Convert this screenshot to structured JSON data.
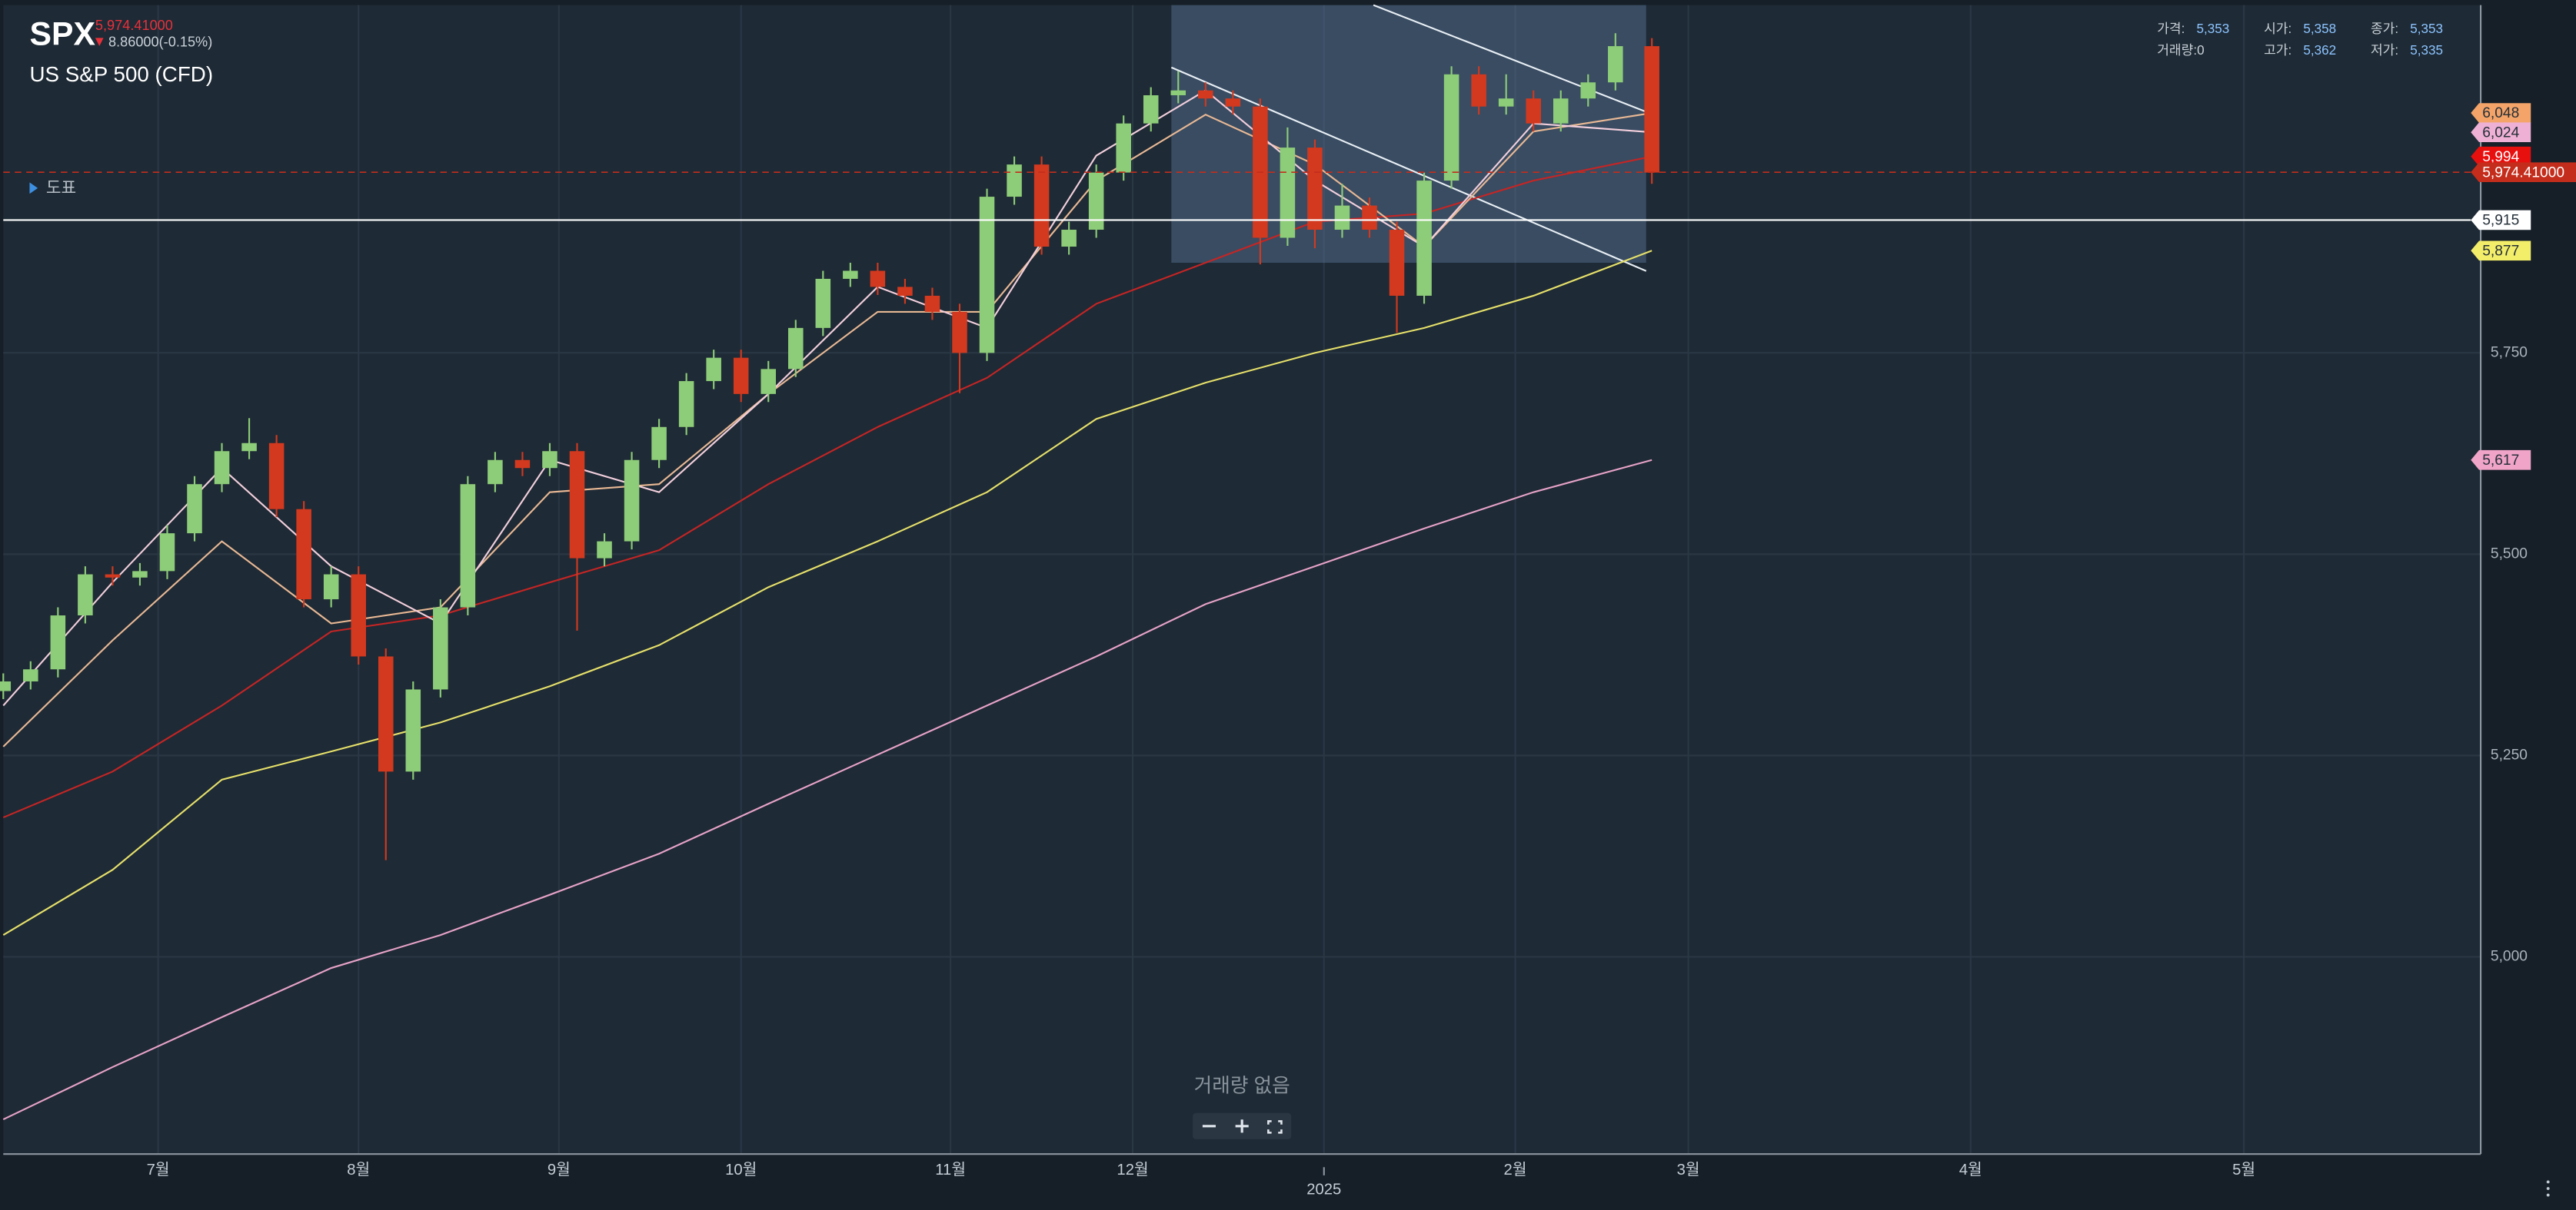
{
  "header": {
    "symbol": "SPX",
    "change": "8.86000(-0.15%)",
    "name": "US S&P 500 (CFD)",
    "toggle": "도표"
  },
  "info": {
    "rows": [
      [
        {
          "label": "가격:",
          "value": "5,353"
        },
        {
          "label": "시가:",
          "value": "5,358"
        },
        {
          "label": "종가:",
          "value": "5,353"
        }
      ],
      [
        {
          "label": "거래량:0"
        },
        {
          "label": "고가:",
          "value": "5,362"
        },
        {
          "label": "저가:",
          "value": "5,335"
        }
      ]
    ]
  },
  "chart_data": {
    "type": "candlestick",
    "x": [
      0,
      3,
      6,
      9,
      12,
      15,
      18,
      21,
      24,
      27,
      30,
      33,
      36,
      39,
      42,
      45,
      48,
      51,
      54,
      57,
      60,
      63,
      66,
      69,
      72,
      75,
      78,
      81,
      84,
      87,
      90,
      93,
      96,
      99,
      102,
      105,
      108,
      111,
      114,
      117,
      120,
      123,
      126,
      129,
      132,
      135,
      138,
      141,
      144,
      147,
      150,
      153,
      156,
      159,
      162,
      165,
      168,
      171,
      174,
      177,
      181
    ],
    "open": [
      5330,
      5342,
      5357,
      5424,
      5475,
      5471,
      5479,
      5526,
      5587,
      5628,
      5638,
      5556,
      5444,
      5475,
      5373,
      5230,
      5332,
      5434,
      5587,
      5617,
      5607,
      5628,
      5495,
      5516,
      5617,
      5658,
      5715,
      5744,
      5699,
      5730,
      5781,
      5842,
      5852,
      5832,
      5821,
      5801,
      5750,
      5944,
      5984,
      5882,
      5903,
      5974,
      6035,
      6070,
      6076,
      6066,
      6056,
      5893,
      6005,
      5903,
      5933,
      5903,
      5821,
      5964,
      6096,
      6056,
      6066,
      6035,
      6066,
      6086,
      6131
    ],
    "high": [
      5352,
      5367,
      5434,
      5485,
      5485,
      5489,
      5536,
      5597,
      5638,
      5669,
      5648,
      5566,
      5485,
      5485,
      5383,
      5342,
      5444,
      5597,
      5627,
      5627,
      5638,
      5638,
      5526,
      5627,
      5668,
      5725,
      5754,
      5754,
      5740,
      5791,
      5852,
      5862,
      5862,
      5842,
      5831,
      5811,
      5954,
      5994,
      5994,
      5913,
      5984,
      6045,
      6080,
      6100,
      6086,
      6076,
      6066,
      6030,
      6015,
      5960,
      5943,
      5913,
      5974,
      6106,
      6106,
      6096,
      6076,
      6076,
      6096,
      6147,
      6141
    ],
    "low": [
      5320,
      5332,
      5347,
      5414,
      5461,
      5461,
      5469,
      5516,
      5577,
      5618,
      5546,
      5434,
      5434,
      5363,
      5120,
      5220,
      5322,
      5424,
      5577,
      5597,
      5597,
      5405,
      5485,
      5506,
      5607,
      5648,
      5705,
      5689,
      5689,
      5720,
      5771,
      5832,
      5822,
      5811,
      5791,
      5700,
      5740,
      5934,
      5872,
      5872,
      5893,
      5964,
      6025,
      6060,
      6056,
      6046,
      5860,
      5883,
      5880,
      5893,
      5893,
      5775,
      5811,
      5954,
      6046,
      6046,
      6025,
      6025,
      6056,
      6076,
      5960
    ],
    "close": [
      5342,
      5357,
      5424,
      5475,
      5471,
      5479,
      5526,
      5587,
      5628,
      5638,
      5556,
      5444,
      5475,
      5373,
      5230,
      5332,
      5434,
      5587,
      5617,
      5607,
      5628,
      5495,
      5516,
      5617,
      5658,
      5715,
      5744,
      5699,
      5730,
      5781,
      5842,
      5852,
      5832,
      5821,
      5801,
      5750,
      5944,
      5984,
      5882,
      5903,
      5974,
      6035,
      6070,
      6076,
      6066,
      6056,
      5893,
      6005,
      5903,
      5933,
      5903,
      5821,
      5964,
      6096,
      6056,
      6066,
      6035,
      6066,
      6086,
      6131,
      5974
    ],
    "up_color": "#8dcc78",
    "down_color": "#d2391f",
    "lines": [
      {
        "color": "#e6e06a",
        "label_color": "#f2ee6a",
        "x": [
          0,
          12,
          24,
          36,
          48,
          60,
          72,
          84,
          96,
          108,
          120,
          132,
          144,
          156,
          168,
          181
        ],
        "values": [
          5027,
          5108,
          5220,
          5255,
          5291,
          5336,
          5387,
          5459,
          5516,
          5577,
          5668,
          5713,
          5750,
          5781,
          5821,
          5877
        ],
        "value_labels": [
          null,
          null,
          null,
          null,
          null,
          null,
          null,
          null,
          null,
          null,
          null,
          null,
          null,
          null,
          null,
          "5,877"
        ]
      },
      {
        "color": "#e6a2c8",
        "label_color": "#f0a4c8",
        "x": [
          0,
          12,
          24,
          36,
          48,
          60,
          72,
          84,
          96,
          108,
          120,
          132,
          144,
          156,
          168,
          181
        ],
        "values": [
          4798,
          4863,
          4925,
          4986,
          5027,
          5077,
          5128,
          5190,
          5251,
          5312,
          5373,
          5438,
          5485,
          5532,
          5577,
          5617
        ],
        "value_labels": [
          null,
          null,
          null,
          null,
          null,
          null,
          null,
          null,
          null,
          null,
          null,
          null,
          null,
          null,
          null,
          "5,617"
        ]
      },
      {
        "color": "#c42525",
        "label_color": "#e8100e",
        "x": [
          0,
          12,
          24,
          36,
          48,
          60,
          72,
          84,
          96,
          108,
          120,
          132,
          144,
          156,
          168,
          181
        ],
        "values": [
          5173,
          5230,
          5312,
          5404,
          5424,
          5465,
          5505,
          5587,
          5658,
          5719,
          5811,
          5862,
          5913,
          5923,
          5964,
          5994
        ],
        "value_labels": [
          null,
          null,
          null,
          null,
          null,
          null,
          null,
          null,
          null,
          null,
          null,
          null,
          null,
          null,
          null,
          "5,994"
        ]
      },
      {
        "color": "#e8b894",
        "label_color": "#f4a468",
        "x": [
          0,
          12,
          24,
          36,
          48,
          60,
          72,
          84,
          96,
          108,
          120,
          132,
          144,
          156,
          168,
          181
        ],
        "values": [
          5261,
          5393,
          5516,
          5414,
          5434,
          5577,
          5587,
          5699,
          5801,
          5801,
          5964,
          6046,
          5984,
          5882,
          6025,
          6048
        ],
        "value_labels": [
          null,
          null,
          null,
          null,
          null,
          null,
          null,
          null,
          null,
          null,
          null,
          null,
          null,
          null,
          null,
          "6,048"
        ]
      },
      {
        "color": "#f2cfdc",
        "label_color": "#eeb0d4",
        "x": [
          0,
          12,
          24,
          36,
          48,
          60,
          72,
          84,
          96,
          108,
          120,
          132,
          144,
          156,
          168,
          181
        ],
        "values": [
          5312,
          5465,
          5607,
          5485,
          5414,
          5617,
          5577,
          5699,
          5832,
          5781,
          5995,
          6076,
          5964,
          5882,
          6035,
          6024
        ],
        "value_labels": [
          null,
          null,
          null,
          null,
          null,
          null,
          null,
          null,
          null,
          null,
          null,
          null,
          null,
          null,
          null,
          "6,024"
        ]
      }
    ],
    "last_price": {
      "value": 5974.41,
      "label": "5,974.41000",
      "color": "#c42d1c"
    },
    "hlines": [
      {
        "value": 5915,
        "label": "5,915",
        "color": "#ffffff"
      }
    ],
    "xlim": [
      0,
      272
    ],
    "ylim": [
      4755,
      6182
    ],
    "yticks": [
      {
        "value": 5000,
        "label": "5,000"
      },
      {
        "value": 5250,
        "label": "5,250"
      },
      {
        "value": 5500,
        "label": "5,500"
      },
      {
        "value": 5750,
        "label": "5,750"
      }
    ],
    "xticks": [
      {
        "value": 17,
        "label": "7월"
      },
      {
        "value": 39,
        "label": "8월"
      },
      {
        "value": 61,
        "label": "9월"
      },
      {
        "value": 81,
        "label": "10월"
      },
      {
        "value": 104,
        "label": "11월"
      },
      {
        "value": 124,
        "label": "12월"
      },
      {
        "value": 166,
        "label": "2월"
      },
      {
        "value": 185,
        "label": "3월"
      },
      {
        "value": 216,
        "label": "4월"
      },
      {
        "value": 246,
        "label": "5월"
      }
    ],
    "year_ticks": [
      {
        "value": 145,
        "label": "2025"
      }
    ],
    "grid": true,
    "volume_note": "거래량 없음"
  }
}
